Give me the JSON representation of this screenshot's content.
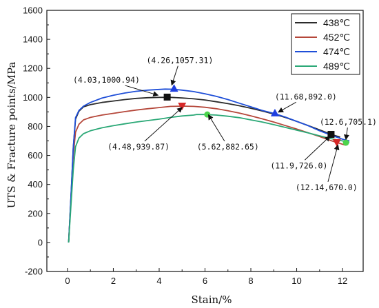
{
  "chart_data": {
    "type": "line",
    "xlabel": "Stain/%",
    "ylabel": "UTS & Fracture points/MPa",
    "xlim": [
      -0.9,
      12.9
    ],
    "ylim": [
      -200,
      1600
    ],
    "x_ticks": [
      "0",
      "2",
      "4",
      "6",
      "8",
      "10",
      "12"
    ],
    "y_ticks": [
      "-200",
      "0",
      "200",
      "400",
      "600",
      "800",
      "1000",
      "1200",
      "1400",
      "1600"
    ],
    "grid": false,
    "legend_position": "top-right",
    "series": [
      {
        "name": "438℃",
        "color": "#2b2b2b",
        "marker": "square",
        "points": [
          [
            0.05,
            0
          ],
          [
            0.15,
            300
          ],
          [
            0.25,
            650
          ],
          [
            0.35,
            850
          ],
          [
            0.5,
            905
          ],
          [
            0.7,
            935
          ],
          [
            1.0,
            950
          ],
          [
            1.5,
            965
          ],
          [
            2.0,
            975
          ],
          [
            2.5,
            985
          ],
          [
            3.0,
            993
          ],
          [
            3.5,
            998
          ],
          [
            4.0,
            1000
          ],
          [
            4.5,
            1000
          ],
          [
            5.0,
            996
          ],
          [
            5.5,
            990
          ],
          [
            6.0,
            982
          ],
          [
            6.5,
            970
          ],
          [
            7.0,
            957
          ],
          [
            7.5,
            942
          ],
          [
            8.0,
            925
          ],
          [
            8.5,
            906
          ],
          [
            9.0,
            885
          ],
          [
            9.5,
            862
          ],
          [
            10.0,
            835
          ],
          [
            10.5,
            806
          ],
          [
            11.0,
            776
          ],
          [
            11.5,
            745
          ],
          [
            11.9,
            726
          ]
        ]
      },
      {
        "name": "452℃",
        "color": "#b5473a",
        "marker": "triangle-down",
        "points": [
          [
            0.05,
            0
          ],
          [
            0.15,
            300
          ],
          [
            0.25,
            600
          ],
          [
            0.35,
            760
          ],
          [
            0.5,
            815
          ],
          [
            0.7,
            845
          ],
          [
            1.0,
            862
          ],
          [
            1.5,
            878
          ],
          [
            2.0,
            890
          ],
          [
            2.5,
            902
          ],
          [
            3.0,
            913
          ],
          [
            3.5,
            922
          ],
          [
            4.0,
            930
          ],
          [
            4.5,
            938
          ],
          [
            5.0,
            940
          ],
          [
            5.5,
            938
          ],
          [
            6.0,
            932
          ],
          [
            6.5,
            922
          ],
          [
            7.0,
            908
          ],
          [
            7.5,
            892
          ],
          [
            8.0,
            873
          ],
          [
            8.5,
            852
          ],
          [
            9.0,
            830
          ],
          [
            9.5,
            806
          ],
          [
            10.0,
            782
          ],
          [
            10.5,
            756
          ],
          [
            11.0,
            730
          ],
          [
            11.5,
            702
          ],
          [
            12.14,
            670
          ]
        ]
      },
      {
        "name": "474℃",
        "color": "#1f4fd8",
        "marker": "triangle-up",
        "points": [
          [
            0.05,
            0
          ],
          [
            0.15,
            310
          ],
          [
            0.25,
            650
          ],
          [
            0.35,
            860
          ],
          [
            0.5,
            910
          ],
          [
            0.7,
            940
          ],
          [
            1.0,
            965
          ],
          [
            1.5,
            995
          ],
          [
            2.0,
            1015
          ],
          [
            2.5,
            1030
          ],
          [
            3.0,
            1042
          ],
          [
            3.5,
            1050
          ],
          [
            4.0,
            1055
          ],
          [
            4.26,
            1057
          ],
          [
            4.6,
            1056
          ],
          [
            5.0,
            1050
          ],
          [
            5.5,
            1040
          ],
          [
            6.0,
            1025
          ],
          [
            6.5,
            1007
          ],
          [
            7.0,
            985
          ],
          [
            7.5,
            960
          ],
          [
            8.0,
            935
          ],
          [
            8.5,
            910
          ],
          [
            9.0,
            890
          ],
          [
            9.5,
            865
          ],
          [
            10.0,
            835
          ],
          [
            10.5,
            805
          ],
          [
            11.0,
            770
          ],
          [
            11.5,
            740
          ],
          [
            12.0,
            712
          ],
          [
            12.3,
            700
          ]
        ]
      },
      {
        "name": "489℃",
        "color": "#2aa876",
        "marker": "circle",
        "points": [
          [
            0.05,
            0
          ],
          [
            0.15,
            250
          ],
          [
            0.25,
            500
          ],
          [
            0.35,
            660
          ],
          [
            0.5,
            720
          ],
          [
            0.7,
            750
          ],
          [
            1.0,
            770
          ],
          [
            1.5,
            790
          ],
          [
            2.0,
            805
          ],
          [
            2.5,
            818
          ],
          [
            3.0,
            830
          ],
          [
            3.5,
            840
          ],
          [
            4.0,
            850
          ],
          [
            4.5,
            862
          ],
          [
            5.0,
            872
          ],
          [
            5.5,
            878
          ],
          [
            5.62,
            882
          ],
          [
            6.0,
            882
          ],
          [
            6.5,
            878
          ],
          [
            7.0,
            870
          ],
          [
            7.5,
            860
          ],
          [
            8.0,
            845
          ],
          [
            8.5,
            830
          ],
          [
            9.0,
            812
          ],
          [
            9.5,
            793
          ],
          [
            10.0,
            774
          ],
          [
            10.5,
            755
          ],
          [
            11.0,
            735
          ],
          [
            11.5,
            715
          ],
          [
            12.0,
            700
          ],
          [
            12.3,
            690
          ]
        ]
      }
    ],
    "markers": [
      {
        "series": "438℃",
        "shape": "square",
        "x": 4.35,
        "y": 1002,
        "color": "#111111"
      },
      {
        "series": "438℃",
        "shape": "square",
        "x": 11.5,
        "y": 745,
        "color": "#111111"
      },
      {
        "series": "452℃",
        "shape": "triangle-down",
        "x": 5.0,
        "y": 940,
        "color": "#d62828"
      },
      {
        "series": "452℃",
        "shape": "triangle-down",
        "x": 11.75,
        "y": 688,
        "color": "#d62828"
      },
      {
        "series": "474℃",
        "shape": "triangle-up",
        "x": 4.65,
        "y": 1063,
        "color": "#1f3fe0"
      },
      {
        "series": "474℃",
        "shape": "triangle-up",
        "x": 9.05,
        "y": 893,
        "color": "#1f3fe0"
      },
      {
        "series": "489℃",
        "shape": "circle",
        "x": 6.1,
        "y": 882,
        "color": "#4cd44c"
      },
      {
        "series": "489℃",
        "shape": "circle",
        "x": 12.15,
        "y": 688,
        "color": "#4cd44c"
      }
    ],
    "annotations": [
      {
        "text": "(4.26,1057.31)",
        "tx": 4.9,
        "ty": 1255,
        "ax": 4.55,
        "ay": 1085
      },
      {
        "text": "(4.03,1000.94)",
        "tx": 1.7,
        "ty": 1120,
        "ax": 3.95,
        "ay": 1015
      },
      {
        "text": "(4.48,939.87)",
        "tx": 3.1,
        "ty": 660,
        "ax": 5.0,
        "ay": 930
      },
      {
        "text": "(5.62,882.65)",
        "tx": 7.0,
        "ty": 660,
        "ax": 6.15,
        "ay": 880
      },
      {
        "text": "(11.68,892.0)",
        "tx": 10.4,
        "ty": 1005,
        "ax": 9.2,
        "ay": 898
      },
      {
        "text": "(12.6,705.1)",
        "tx": 12.25,
        "ty": 830,
        "ax": 12.15,
        "ay": 710
      },
      {
        "text": "(11.9,726.0)",
        "tx": 10.1,
        "ty": 530,
        "ax": 11.45,
        "ay": 732
      },
      {
        "text": "(12.14,670.0)",
        "tx": 11.3,
        "ty": 380,
        "ax": 11.8,
        "ay": 672
      }
    ]
  }
}
